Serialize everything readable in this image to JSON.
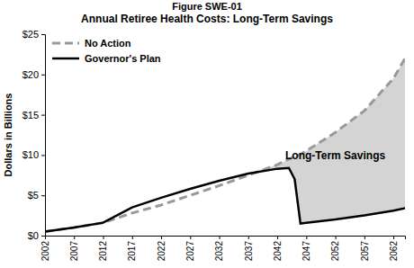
{
  "chart_data": {
    "type": "line",
    "figure_label": "Figure SWE-01",
    "title": "Annual Retiree Health Costs: Long-Term Savings",
    "y_label": "Dollars in Billions",
    "x": [
      2002,
      2007,
      2012,
      2017,
      2022,
      2027,
      2032,
      2037,
      2042,
      2044,
      2045,
      2046,
      2047,
      2052,
      2057,
      2062,
      2064
    ],
    "series": [
      {
        "name": "No Action",
        "color": "#999999",
        "line_style": "dashed",
        "values": [
          0.5,
          1.0,
          1.6,
          2.8,
          3.8,
          5.0,
          6.2,
          7.5,
          8.8,
          9.5,
          9.8,
          10.1,
          10.5,
          12.8,
          15.5,
          19.5,
          22.0
        ]
      },
      {
        "name": "Governor's Plan",
        "color": "#000000",
        "line_style": "solid",
        "values": [
          0.5,
          1.0,
          1.6,
          3.5,
          4.7,
          5.8,
          6.8,
          7.7,
          8.3,
          8.4,
          7.0,
          1.5,
          1.6,
          2.0,
          2.5,
          3.1,
          3.4
        ]
      }
    ],
    "annotations": [
      {
        "text": "Long-Term Savings",
        "x": 2052,
        "y": 9.5,
        "fill_color": "#d4d4d4"
      }
    ],
    "xlim": [
      2002,
      2064
    ],
    "xticks": [
      2002,
      2007,
      2012,
      2017,
      2022,
      2027,
      2032,
      2037,
      2042,
      2047,
      2052,
      2057,
      2062
    ],
    "ylim": [
      0,
      25
    ],
    "yticks": [
      {
        "value": 0,
        "label": "$0"
      },
      {
        "value": 5,
        "label": "$5"
      },
      {
        "value": 10,
        "label": "$10"
      },
      {
        "value": 15,
        "label": "$15"
      },
      {
        "value": 20,
        "label": "$20"
      },
      {
        "value": 25,
        "label": "$25"
      }
    ],
    "grid": false,
    "legend": "upper left"
  }
}
